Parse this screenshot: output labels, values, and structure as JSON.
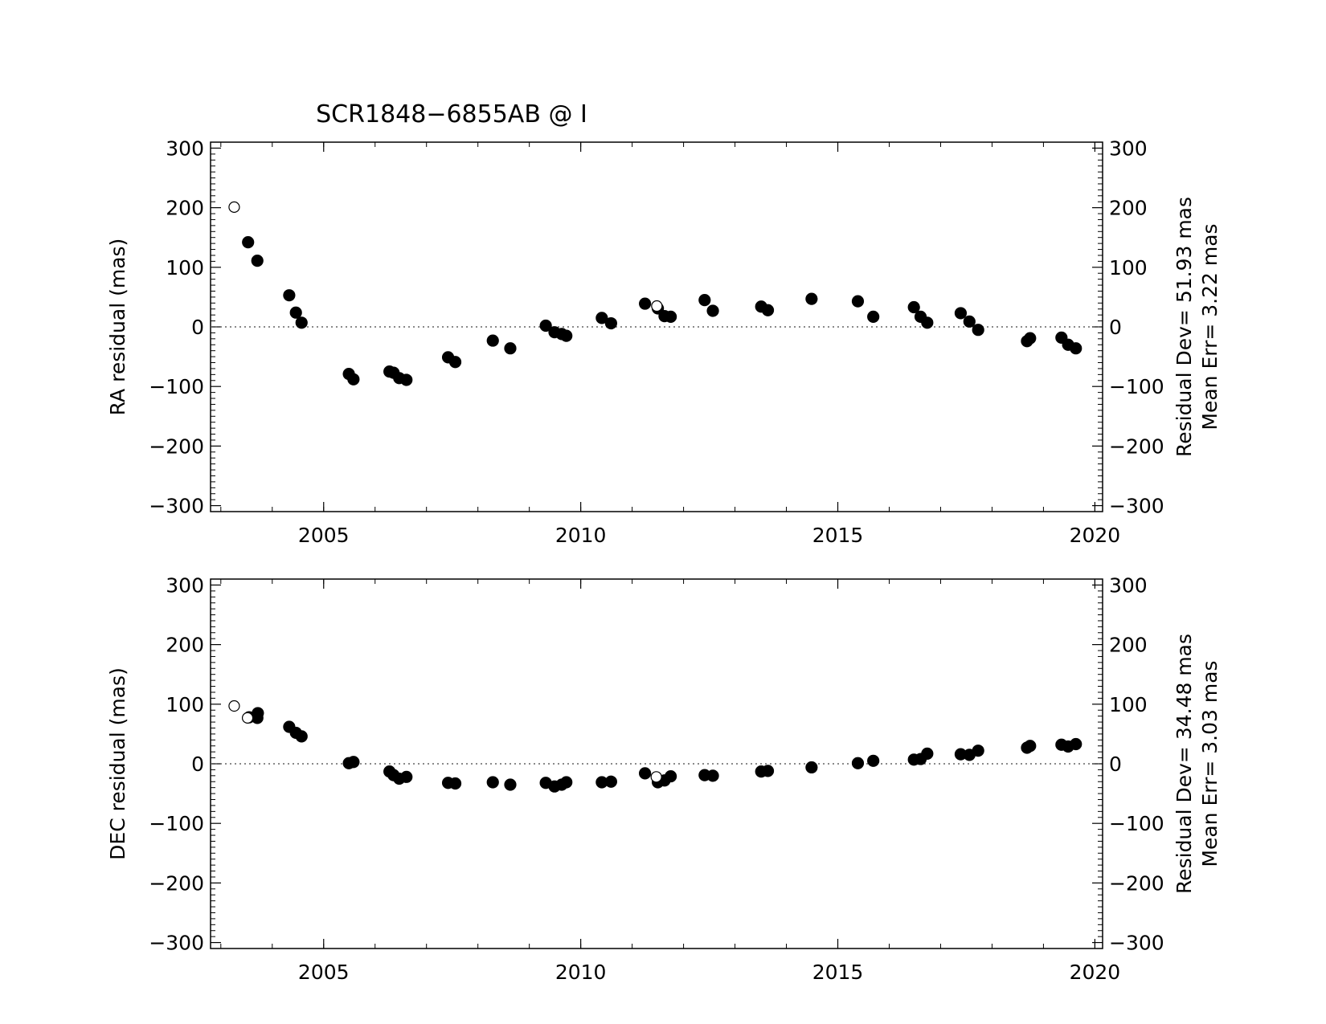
{
  "chart_data": [
    {
      "type": "scatter",
      "id": "ra",
      "title": "SCR1848−6855AB @ I",
      "xlabel": "",
      "ylabel": "RA residual (mas)",
      "xlim": [
        2002.8,
        2020.15
      ],
      "ylim": [
        -310,
        310
      ],
      "xticks": [
        2005,
        2010,
        2015,
        2020
      ],
      "xtick_labels": [
        "2005",
        "2010",
        "2015",
        "2020"
      ],
      "yticks": [
        300,
        200,
        100,
        0,
        -100,
        -200,
        -300
      ],
      "ytick_labels": [
        "300",
        "200",
        "100",
        "0",
        "−100",
        "−200",
        "−300"
      ],
      "zero_line": "dotted",
      "stats_line1": "Residual Dev=  51.93 mas",
      "stats_line2": "Mean  Err=  3.22 mas",
      "series": [
        {
          "marker": "filled-circle",
          "x": [
            2003.53,
            2003.71,
            2004.33,
            2004.46,
            2004.57,
            2005.49,
            2005.58,
            2006.28,
            2006.36,
            2006.47,
            2006.61,
            2007.42,
            2007.56,
            2008.29,
            2008.63,
            2009.32,
            2009.49,
            2009.63,
            2009.72,
            2010.41,
            2010.59,
            2011.25,
            2011.5,
            2011.63,
            2011.75,
            2012.41,
            2012.57,
            2013.51,
            2013.64,
            2014.49,
            2015.39,
            2015.69,
            2016.48,
            2016.61,
            2016.74,
            2017.39,
            2017.56,
            2017.73,
            2018.68,
            2018.74,
            2019.35,
            2019.48,
            2019.63
          ],
          "y": [
            142,
            111,
            53,
            24,
            7,
            -79,
            -88,
            -75,
            -77,
            -86,
            -89,
            -51,
            -59,
            -23,
            -36,
            2,
            -9,
            -12,
            -15,
            15,
            6,
            39,
            31,
            18,
            17,
            45,
            27,
            34,
            28,
            47,
            43,
            17,
            33,
            17,
            7,
            23,
            9,
            -5,
            -24,
            -19,
            -18,
            -30,
            -36
          ]
        },
        {
          "marker": "open-circle",
          "x": [
            2003.26,
            2011.48
          ],
          "y": [
            201,
            35
          ]
        }
      ]
    },
    {
      "type": "scatter",
      "id": "dec",
      "title": "",
      "xlabel": "",
      "ylabel": "DEC residual (mas)",
      "xlim": [
        2002.8,
        2020.15
      ],
      "ylim": [
        -310,
        310
      ],
      "xticks": [
        2005,
        2010,
        2015,
        2020
      ],
      "xtick_labels": [
        "2005",
        "2010",
        "2015",
        "2020"
      ],
      "yticks": [
        300,
        200,
        100,
        0,
        -100,
        -200,
        -300
      ],
      "ytick_labels": [
        "300",
        "200",
        "100",
        "0",
        "−100",
        "−200",
        "−300"
      ],
      "zero_line": "dotted",
      "stats_line1": "Residual Dev=  34.48 mas",
      "stats_line2": "Mean  Err=  3.03 mas",
      "series": [
        {
          "marker": "filled-circle",
          "x": [
            2003.55,
            2003.71,
            2003.72,
            2004.33,
            2004.46,
            2004.57,
            2005.49,
            2005.58,
            2006.28,
            2006.36,
            2006.47,
            2006.61,
            2007.42,
            2007.56,
            2008.29,
            2008.63,
            2009.32,
            2009.49,
            2009.63,
            2009.72,
            2010.41,
            2010.59,
            2011.25,
            2011.5,
            2011.63,
            2011.75,
            2012.41,
            2012.57,
            2013.51,
            2013.64,
            2014.49,
            2015.39,
            2015.69,
            2016.48,
            2016.61,
            2016.74,
            2017.39,
            2017.56,
            2017.73,
            2018.68,
            2018.74,
            2019.35,
            2019.48,
            2019.63
          ],
          "y": [
            78,
            77,
            85,
            62,
            52,
            46,
            1,
            3,
            -13,
            -19,
            -25,
            -22,
            -32,
            -33,
            -31,
            -35,
            -32,
            -38,
            -35,
            -31,
            -31,
            -30,
            -16,
            -31,
            -28,
            -21,
            -19,
            -20,
            -13,
            -12,
            -6,
            1,
            5,
            7,
            8,
            17,
            16,
            15,
            22,
            27,
            30,
            32,
            29,
            33
          ]
        },
        {
          "marker": "open-circle",
          "x": [
            2003.26,
            2003.52,
            2011.47
          ],
          "y": [
            97,
            77,
            -22
          ]
        }
      ]
    }
  ]
}
